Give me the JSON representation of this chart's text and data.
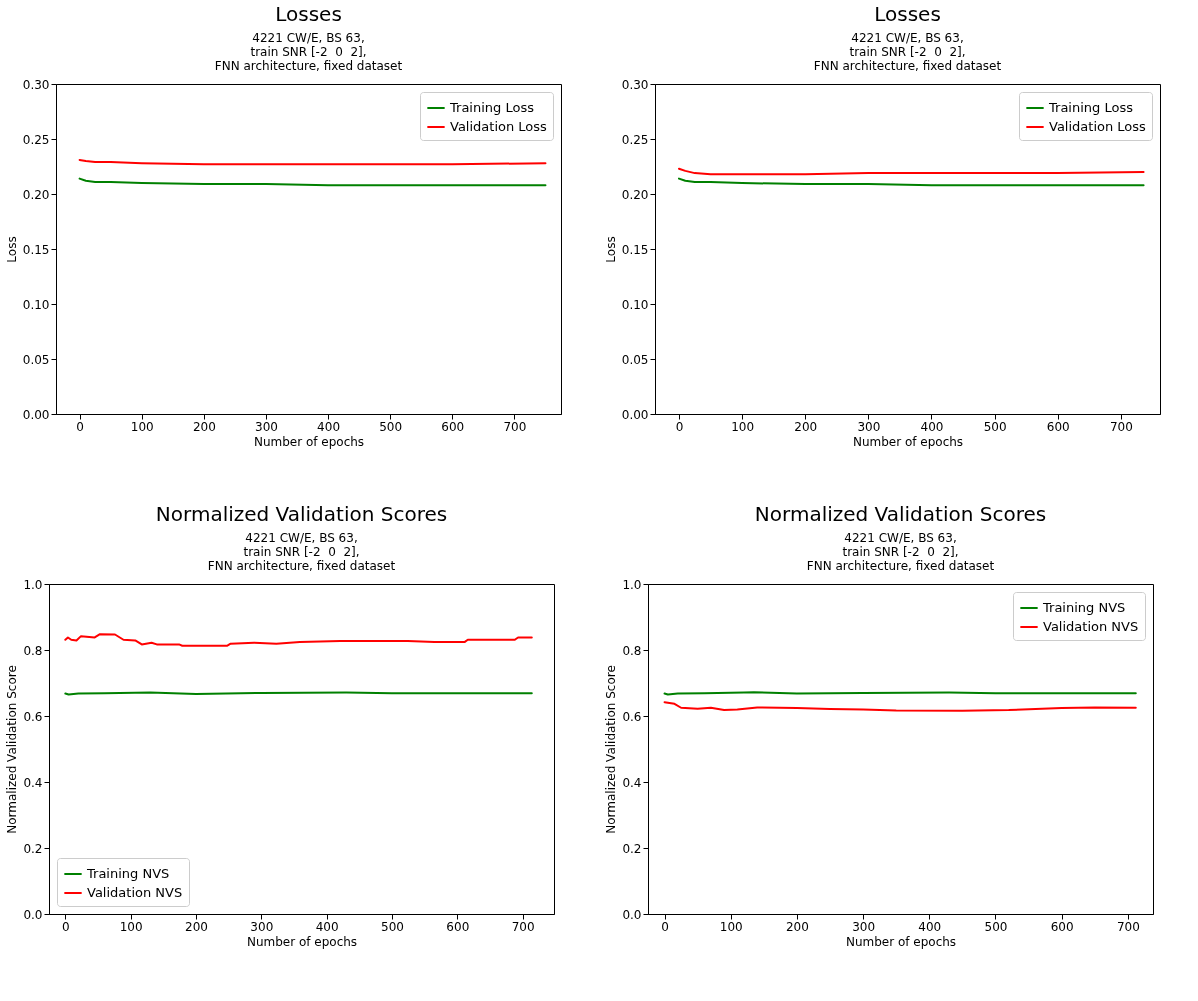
{
  "chart_data": [
    {
      "type": "line",
      "title": "Losses",
      "subtitle": "4221 CW/E, BS 63,\ntrain SNR [-2  0  2],\nFNN architecture, fixed dataset",
      "xlabel": "Number of epochs",
      "ylabel": "Loss",
      "xlim": [
        -38,
        775
      ],
      "ylim": [
        0,
        0.3
      ],
      "xticks": [
        0,
        100,
        200,
        300,
        400,
        500,
        600,
        700
      ],
      "yticks": [
        {
          "value": 0,
          "label": "0.00"
        },
        0.05,
        {
          "value": 0.1,
          "label": "0.10"
        },
        0.15,
        {
          "value": 0.2,
          "label": "0.20"
        },
        0.25,
        {
          "value": 0.3,
          "label": "0.30"
        }
      ],
      "grid": false,
      "legend": "top right",
      "series": [
        {
          "name": "Training Loss",
          "color": "#008000",
          "x": [
            0,
            10,
            25,
            50,
            100,
            200,
            300,
            400,
            500,
            600,
            750
          ],
          "values": [
            0.214,
            0.212,
            0.211,
            0.211,
            0.21,
            0.209,
            0.209,
            0.208,
            0.208,
            0.208,
            0.208
          ]
        },
        {
          "name": "Validation Loss",
          "color": "#ff0000",
          "x": [
            0,
            10,
            25,
            50,
            100,
            200,
            300,
            400,
            500,
            600,
            750
          ],
          "values": [
            0.231,
            0.23,
            0.229,
            0.229,
            0.228,
            0.227,
            0.227,
            0.227,
            0.227,
            0.227,
            0.228
          ]
        }
      ]
    },
    {
      "type": "line",
      "title": "Losses",
      "subtitle": "4221 CW/E, BS 63,\ntrain SNR [-2  0  2],\nFNN architecture, fixed dataset",
      "xlabel": "Number of epochs",
      "ylabel": "Loss",
      "xlim": [
        -38,
        762
      ],
      "ylim": [
        0,
        0.3
      ],
      "xticks": [
        0,
        100,
        200,
        300,
        400,
        500,
        600,
        700
      ],
      "yticks": [
        {
          "value": 0,
          "label": "0.00"
        },
        0.05,
        {
          "value": 0.1,
          "label": "0.10"
        },
        0.15,
        {
          "value": 0.2,
          "label": "0.20"
        },
        0.25,
        {
          "value": 0.3,
          "label": "0.30"
        }
      ],
      "grid": false,
      "legend": "top right",
      "series": [
        {
          "name": "Training Loss",
          "color": "#008000",
          "x": [
            0,
            10,
            25,
            50,
            100,
            200,
            300,
            400,
            500,
            600,
            736
          ],
          "values": [
            0.214,
            0.212,
            0.211,
            0.211,
            0.21,
            0.209,
            0.209,
            0.208,
            0.208,
            0.208,
            0.208
          ]
        },
        {
          "name": "Validation Loss",
          "color": "#ff0000",
          "x": [
            0,
            10,
            25,
            50,
            100,
            200,
            300,
            400,
            500,
            600,
            736
          ],
          "values": [
            0.223,
            0.221,
            0.219,
            0.218,
            0.218,
            0.218,
            0.219,
            0.219,
            0.219,
            0.219,
            0.22
          ]
        }
      ]
    },
    {
      "type": "line",
      "title": "Normalized Validation Scores",
      "subtitle": "4221 CW/E, BS 63,\ntrain SNR [-2  0  2],\nFNN architecture, fixed dataset",
      "xlabel": "Number of epochs",
      "ylabel": "Normalized Validation Score",
      "xlim": [
        -25,
        748
      ],
      "ylim": [
        0,
        1
      ],
      "xticks": [
        0,
        100,
        200,
        300,
        400,
        500,
        600,
        700
      ],
      "yticks": [
        {
          "value": 0,
          "label": "0.0"
        },
        0.2,
        0.4,
        0.6,
        0.8,
        {
          "value": 1,
          "label": "1.0"
        }
      ],
      "grid": false,
      "legend": "bottom left",
      "series": [
        {
          "name": "Training NVS",
          "color": "#008000",
          "x": [
            0,
            5,
            20,
            60,
            130,
            200,
            300,
            430,
            500,
            600,
            714
          ],
          "values": [
            0.668,
            0.665,
            0.668,
            0.669,
            0.671,
            0.667,
            0.67,
            0.671,
            0.669,
            0.669,
            0.669
          ]
        },
        {
          "name": "Validation NVS",
          "color": "#ff0000",
          "x": [
            0,
            4,
            9,
            17,
            24,
            45,
            53,
            76,
            89,
            107,
            117,
            132,
            140,
            174,
            179,
            248,
            253,
            289,
            323,
            359,
            421,
            524,
            565,
            611,
            616,
            688,
            693,
            714
          ],
          "values": [
            0.831,
            0.838,
            0.831,
            0.829,
            0.842,
            0.838,
            0.848,
            0.847,
            0.831,
            0.829,
            0.817,
            0.822,
            0.817,
            0.817,
            0.813,
            0.813,
            0.819,
            0.822,
            0.819,
            0.824,
            0.827,
            0.827,
            0.824,
            0.824,
            0.831,
            0.831,
            0.838,
            0.838
          ]
        }
      ]
    },
    {
      "type": "line",
      "title": "Normalized Validation Scores",
      "subtitle": "4221 CW/E, BS 63,\ntrain SNR [-2  0  2],\nFNN architecture, fixed dataset",
      "xlabel": "Number of epochs",
      "ylabel": "Normalized Validation Score",
      "xlim": [
        -25,
        738
      ],
      "ylim": [
        0,
        1
      ],
      "xticks": [
        0,
        100,
        200,
        300,
        400,
        500,
        600,
        700
      ],
      "yticks": [
        {
          "value": 0,
          "label": "0.0"
        },
        0.2,
        0.4,
        0.6,
        0.8,
        {
          "value": 1,
          "label": "1.0"
        }
      ],
      "grid": false,
      "legend": "top right",
      "series": [
        {
          "name": "Training NVS",
          "color": "#008000",
          "x": [
            0,
            5,
            20,
            60,
            120,
            135,
            200,
            300,
            430,
            500,
            600,
            712
          ],
          "values": [
            0.668,
            0.665,
            0.668,
            0.669,
            0.671,
            0.672,
            0.668,
            0.67,
            0.671,
            0.669,
            0.669,
            0.669
          ]
        },
        {
          "name": "Validation NVS",
          "color": "#ff0000",
          "x": [
            0,
            15,
            25,
            50,
            70,
            90,
            110,
            140,
            200,
            250,
            300,
            350,
            450,
            520,
            600,
            650,
            712
          ],
          "values": [
            0.642,
            0.637,
            0.625,
            0.622,
            0.625,
            0.618,
            0.62,
            0.626,
            0.624,
            0.621,
            0.62,
            0.617,
            0.616,
            0.618,
            0.624,
            0.626,
            0.625
          ]
        }
      ]
    }
  ]
}
